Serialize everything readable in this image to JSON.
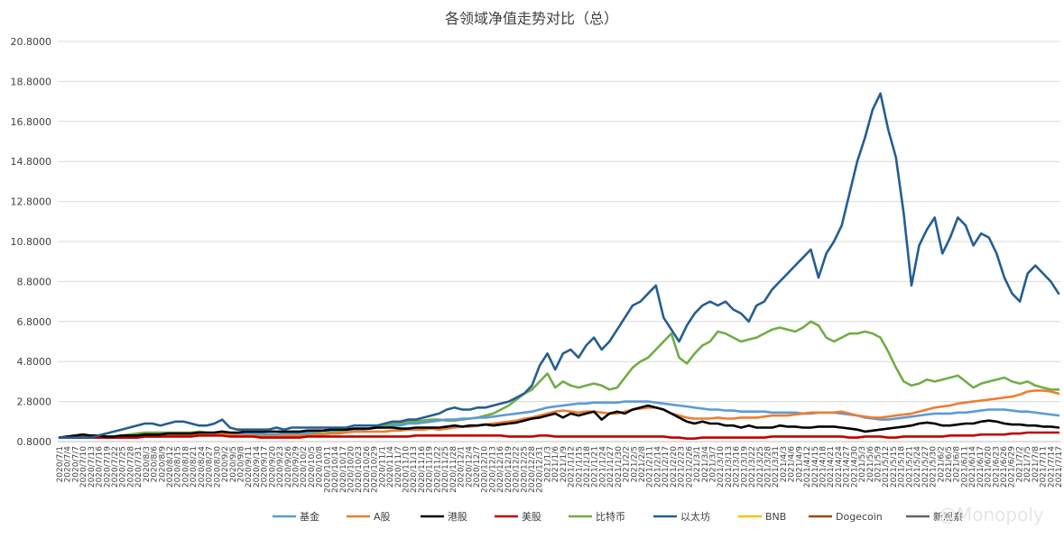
{
  "chart_data": {
    "type": "line",
    "title": "各领域净值走势对比（总）",
    "xlabel": "",
    "ylabel": "",
    "ylim": [
      0.8,
      20.8
    ],
    "yticks": [
      "0.8000",
      "2.8000",
      "4.8000",
      "6.8000",
      "8.8000",
      "10.8000",
      "12.8000",
      "14.8000",
      "16.8000",
      "18.8000",
      "20.8000"
    ],
    "grid": true,
    "legend_position": "bottom",
    "x_labels": [
      "2020/7/1",
      "2020/7/4",
      "2020/7/7",
      "2020/7/10",
      "2020/7/13",
      "2020/7/16",
      "2020/7/19",
      "2020/7/22",
      "2020/7/25",
      "2020/7/28",
      "2020/7/31",
      "2020/8/3",
      "2020/8/6",
      "2020/8/9",
      "2020/8/12",
      "2020/8/15",
      "2020/8/18",
      "2020/8/21",
      "2020/8/24",
      "2020/8/27",
      "2020/8/30",
      "2020/9/2",
      "2020/9/5",
      "2020/9/8",
      "2020/9/11",
      "2020/9/14",
      "2020/9/17",
      "2020/9/20",
      "2020/9/23",
      "2020/9/26",
      "2020/9/29",
      "2020/10/2",
      "2020/10/5",
      "2020/10/8",
      "2020/10/11",
      "2020/10/14",
      "2020/10/17",
      "2020/10/20",
      "2020/10/23",
      "2020/10/26",
      "2020/10/29",
      "2020/11/1",
      "2020/11/4",
      "2020/11/7",
      "2020/11/10",
      "2020/11/13",
      "2020/11/16",
      "2020/11/19",
      "2020/11/22",
      "2020/11/25",
      "2020/11/28",
      "2020/12/1",
      "2020/12/4",
      "2020/12/7",
      "2020/12/10",
      "2020/12/13",
      "2020/12/16",
      "2020/12/19",
      "2020/12/22",
      "2020/12/25",
      "2020/12/28",
      "2020/12/31",
      "2021/1/3",
      "2021/1/6",
      "2021/1/9",
      "2021/1/12",
      "2021/1/15",
      "2021/1/18",
      "2021/1/21",
      "2021/1/24",
      "2021/1/27",
      "2021/1/30",
      "2021/2/2",
      "2021/2/5",
      "2021/2/8",
      "2021/2/11",
      "2021/2/14",
      "2021/2/17",
      "2021/2/20",
      "2021/2/23",
      "2021/2/26",
      "2021/3/1",
      "2021/3/4",
      "2021/3/7",
      "2021/3/10",
      "2021/3/13",
      "2021/3/16",
      "2021/3/19",
      "2021/3/22",
      "2021/3/25",
      "2021/3/28",
      "2021/3/31",
      "2021/4/3",
      "2021/4/6",
      "2021/4/9",
      "2021/4/12",
      "2021/4/15",
      "2021/4/18",
      "2021/4/21",
      "2021/4/24",
      "2021/4/27",
      "2021/4/30",
      "2021/5/3",
      "2021/5/6",
      "2021/5/9",
      "2021/5/12",
      "2021/5/15",
      "2021/5/18",
      "2021/5/21",
      "2021/5/24",
      "2021/5/27",
      "2021/5/30",
      "2021/6/2",
      "2021/6/5",
      "2021/6/8",
      "2021/6/11",
      "2021/6/14",
      "2021/6/17",
      "2021/6/20",
      "2021/6/23",
      "2021/6/26",
      "2021/6/29",
      "2021/7/2",
      "2021/7/5",
      "2021/7/8",
      "2021/7/11",
      "2021/7/14",
      "2021/7/17"
    ],
    "series": [
      {
        "name": "基金",
        "color": "#5b9bd5",
        "values": [
          1.0,
          1.0,
          1.0,
          1.0,
          1.0,
          1.0,
          1.0,
          1.0,
          1.0,
          1.0,
          1.0,
          1.05,
          1.05,
          1.05,
          1.1,
          1.15,
          1.1,
          1.15,
          1.15,
          1.2,
          1.25,
          1.3,
          1.2,
          1.2,
          1.2,
          1.2,
          1.2,
          1.15,
          1.15,
          1.2,
          1.2,
          1.2,
          1.25,
          1.3,
          1.35,
          1.35,
          1.4,
          1.4,
          1.4,
          1.4,
          1.45,
          1.5,
          1.5,
          1.6,
          1.6,
          1.7,
          1.7,
          1.75,
          1.8,
          1.85,
          1.9,
          1.9,
          1.95,
          1.95,
          2.0,
          2.0,
          2.05,
          2.1,
          2.15,
          2.2,
          2.25,
          2.3,
          2.4,
          2.5,
          2.55,
          2.6,
          2.65,
          2.7,
          2.7,
          2.75,
          2.75,
          2.75,
          2.75,
          2.8,
          2.8,
          2.8,
          2.8,
          2.75,
          2.7,
          2.65,
          2.6,
          2.55,
          2.5,
          2.45,
          2.4,
          2.4,
          2.35,
          2.35,
          2.3,
          2.3,
          2.3,
          2.3,
          2.25,
          2.25,
          2.25,
          2.25,
          2.2,
          2.2,
          2.25,
          2.25,
          2.25,
          2.2,
          2.15,
          2.1,
          2.0,
          1.95,
          1.9,
          1.9,
          1.95,
          2.0,
          2.05,
          2.1,
          2.15,
          2.2,
          2.2,
          2.2,
          2.25,
          2.25,
          2.3,
          2.35,
          2.4,
          2.4,
          2.4,
          2.35,
          2.3,
          2.3,
          2.25,
          2.2,
          2.15,
          2.1
        ]
      },
      {
        "name": "A股",
        "color": "#ed7d31",
        "values": [
          1.0,
          1.0,
          1.05,
          1.1,
          1.05,
          1.05,
          1.0,
          1.05,
          1.05,
          1.1,
          1.1,
          1.1,
          1.1,
          1.15,
          1.15,
          1.1,
          1.1,
          1.1,
          1.15,
          1.15,
          1.15,
          1.2,
          1.15,
          1.1,
          1.1,
          1.1,
          1.05,
          1.05,
          1.05,
          1.1,
          1.1,
          1.1,
          1.1,
          1.15,
          1.15,
          1.2,
          1.2,
          1.25,
          1.3,
          1.3,
          1.3,
          1.3,
          1.3,
          1.35,
          1.35,
          1.4,
          1.4,
          1.4,
          1.45,
          1.4,
          1.45,
          1.5,
          1.55,
          1.55,
          1.6,
          1.65,
          1.7,
          1.75,
          1.8,
          1.85,
          1.95,
          2.0,
          2.1,
          2.2,
          2.3,
          2.35,
          2.3,
          2.25,
          2.3,
          2.3,
          2.25,
          2.2,
          2.2,
          2.3,
          2.4,
          2.45,
          2.5,
          2.5,
          2.4,
          2.2,
          2.1,
          2.0,
          1.95,
          1.95,
          1.95,
          2.0,
          1.95,
          1.95,
          2.0,
          2.0,
          2.0,
          2.05,
          2.1,
          2.1,
          2.1,
          2.15,
          2.2,
          2.25,
          2.25,
          2.25,
          2.25,
          2.3,
          2.2,
          2.1,
          2.05,
          2.0,
          2.0,
          2.05,
          2.1,
          2.15,
          2.2,
          2.3,
          2.4,
          2.5,
          2.55,
          2.6,
          2.7,
          2.75,
          2.8,
          2.85,
          2.9,
          2.95,
          3.0,
          3.05,
          3.15,
          3.3,
          3.35,
          3.35,
          3.3,
          3.2
        ]
      },
      {
        "name": "港股",
        "color": "#000000",
        "values": [
          1.0,
          1.05,
          1.1,
          1.15,
          1.1,
          1.1,
          1.05,
          1.05,
          1.1,
          1.1,
          1.1,
          1.15,
          1.15,
          1.15,
          1.2,
          1.2,
          1.2,
          1.2,
          1.25,
          1.25,
          1.25,
          1.3,
          1.25,
          1.25,
          1.3,
          1.3,
          1.3,
          1.3,
          1.3,
          1.3,
          1.3,
          1.3,
          1.35,
          1.35,
          1.35,
          1.4,
          1.4,
          1.4,
          1.45,
          1.45,
          1.45,
          1.5,
          1.5,
          1.5,
          1.45,
          1.45,
          1.5,
          1.5,
          1.5,
          1.5,
          1.55,
          1.6,
          1.55,
          1.6,
          1.6,
          1.65,
          1.6,
          1.65,
          1.7,
          1.75,
          1.85,
          1.95,
          2.0,
          2.1,
          2.2,
          2.0,
          2.2,
          2.1,
          2.2,
          2.3,
          1.9,
          2.2,
          2.3,
          2.2,
          2.4,
          2.5,
          2.6,
          2.5,
          2.4,
          2.2,
          2.0,
          1.8,
          1.7,
          1.8,
          1.7,
          1.7,
          1.6,
          1.6,
          1.5,
          1.6,
          1.5,
          1.5,
          1.5,
          1.6,
          1.55,
          1.55,
          1.5,
          1.5,
          1.55,
          1.55,
          1.55,
          1.5,
          1.45,
          1.4,
          1.3,
          1.35,
          1.4,
          1.45,
          1.5,
          1.55,
          1.6,
          1.7,
          1.75,
          1.7,
          1.6,
          1.6,
          1.65,
          1.7,
          1.7,
          1.8,
          1.85,
          1.8,
          1.7,
          1.65,
          1.65,
          1.6,
          1.6,
          1.55,
          1.55,
          1.5
        ]
      },
      {
        "name": "美股",
        "color": "#c00000",
        "values": [
          1.0,
          1.0,
          1.0,
          1.0,
          1.0,
          1.0,
          1.0,
          1.0,
          1.0,
          1.0,
          1.0,
          1.05,
          1.05,
          1.05,
          1.05,
          1.05,
          1.05,
          1.05,
          1.1,
          1.1,
          1.1,
          1.1,
          1.05,
          1.05,
          1.05,
          1.05,
          1.0,
          1.0,
          1.0,
          1.0,
          1.0,
          1.0,
          1.05,
          1.05,
          1.05,
          1.05,
          1.05,
          1.05,
          1.05,
          1.05,
          1.05,
          1.05,
          1.05,
          1.05,
          1.05,
          1.05,
          1.1,
          1.1,
          1.1,
          1.1,
          1.1,
          1.1,
          1.1,
          1.1,
          1.1,
          1.1,
          1.1,
          1.1,
          1.05,
          1.05,
          1.05,
          1.05,
          1.1,
          1.1,
          1.05,
          1.05,
          1.05,
          1.05,
          1.05,
          1.05,
          1.05,
          1.05,
          1.05,
          1.05,
          1.05,
          1.05,
          1.05,
          1.05,
          1.05,
          1.0,
          1.0,
          0.95,
          0.95,
          1.0,
          1.0,
          1.0,
          1.0,
          1.0,
          1.0,
          1.0,
          1.0,
          1.0,
          1.05,
          1.05,
          1.05,
          1.05,
          1.05,
          1.05,
          1.05,
          1.05,
          1.05,
          1.05,
          1.0,
          1.0,
          1.05,
          1.05,
          1.05,
          1.0,
          1.0,
          1.05,
          1.05,
          1.05,
          1.05,
          1.05,
          1.05,
          1.1,
          1.1,
          1.1,
          1.1,
          1.15,
          1.15,
          1.15,
          1.15,
          1.2,
          1.2,
          1.25,
          1.25,
          1.25,
          1.25,
          1.25
        ]
      },
      {
        "name": "比特币",
        "color": "#70ad47",
        "values": [
          1.0,
          1.0,
          1.0,
          1.0,
          1.0,
          1.05,
          1.05,
          1.05,
          1.1,
          1.15,
          1.2,
          1.25,
          1.25,
          1.25,
          1.25,
          1.25,
          1.25,
          1.25,
          1.3,
          1.25,
          1.2,
          1.25,
          1.15,
          1.1,
          1.1,
          1.1,
          1.1,
          1.1,
          1.1,
          1.1,
          1.15,
          1.15,
          1.15,
          1.2,
          1.2,
          1.25,
          1.3,
          1.35,
          1.4,
          1.4,
          1.45,
          1.55,
          1.6,
          1.7,
          1.7,
          1.8,
          1.8,
          1.85,
          1.9,
          1.9,
          1.85,
          1.85,
          1.9,
          1.95,
          2.0,
          2.1,
          2.2,
          2.4,
          2.6,
          2.9,
          3.2,
          3.4,
          3.8,
          4.2,
          3.5,
          3.8,
          3.6,
          3.5,
          3.6,
          3.7,
          3.6,
          3.4,
          3.5,
          4.0,
          4.5,
          4.8,
          5.0,
          5.4,
          5.8,
          6.2,
          5.0,
          4.7,
          5.2,
          5.6,
          5.8,
          6.3,
          6.2,
          6.0,
          5.8,
          5.9,
          6.0,
          6.2,
          6.4,
          6.5,
          6.4,
          6.3,
          6.5,
          6.8,
          6.6,
          6.0,
          5.8,
          6.0,
          6.2,
          6.2,
          6.3,
          6.2,
          6.0,
          5.3,
          4.5,
          3.8,
          3.6,
          3.7,
          3.9,
          3.8,
          3.9,
          4.0,
          4.1,
          3.8,
          3.5,
          3.7,
          3.8,
          3.9,
          4.0,
          3.8,
          3.7,
          3.8,
          3.6,
          3.5,
          3.4,
          3.4
        ]
      },
      {
        "name": "以太坊",
        "color": "#255e91",
        "values": [
          1.0,
          1.0,
          1.0,
          1.0,
          1.0,
          1.1,
          1.2,
          1.3,
          1.4,
          1.5,
          1.6,
          1.7,
          1.7,
          1.6,
          1.7,
          1.8,
          1.8,
          1.7,
          1.6,
          1.6,
          1.7,
          1.9,
          1.5,
          1.4,
          1.4,
          1.4,
          1.4,
          1.4,
          1.5,
          1.4,
          1.5,
          1.5,
          1.5,
          1.5,
          1.5,
          1.5,
          1.5,
          1.5,
          1.6,
          1.6,
          1.6,
          1.6,
          1.7,
          1.8,
          1.8,
          1.9,
          1.9,
          2.0,
          2.1,
          2.2,
          2.4,
          2.5,
          2.4,
          2.4,
          2.5,
          2.5,
          2.6,
          2.7,
          2.8,
          3.0,
          3.2,
          3.6,
          4.6,
          5.2,
          4.4,
          5.2,
          5.4,
          5.0,
          5.6,
          6.0,
          5.4,
          5.8,
          6.4,
          7.0,
          7.6,
          7.8,
          8.2,
          8.6,
          7.0,
          6.4,
          5.8,
          6.6,
          7.2,
          7.6,
          7.8,
          7.6,
          7.8,
          7.4,
          7.2,
          6.8,
          7.6,
          7.8,
          8.4,
          8.8,
          9.2,
          9.6,
          10.0,
          10.4,
          9.0,
          10.2,
          10.8,
          11.6,
          13.2,
          14.8,
          16.0,
          17.4,
          18.2,
          16.4,
          15.0,
          12.2,
          8.6,
          10.6,
          11.4,
          12.0,
          10.2,
          11.0,
          12.0,
          11.6,
          10.6,
          11.2,
          11.0,
          10.2,
          9.0,
          8.2,
          7.8,
          9.2,
          9.6,
          9.2,
          8.8,
          8.2
        ]
      },
      {
        "name": "BNB",
        "color": "#ffc000",
        "values": []
      },
      {
        "name": "Dogecoin",
        "color": "#9e480e",
        "values": []
      },
      {
        "name": "新观察",
        "color": "#636363",
        "values": []
      }
    ]
  },
  "watermark": {
    "text": "@Monopoly"
  }
}
